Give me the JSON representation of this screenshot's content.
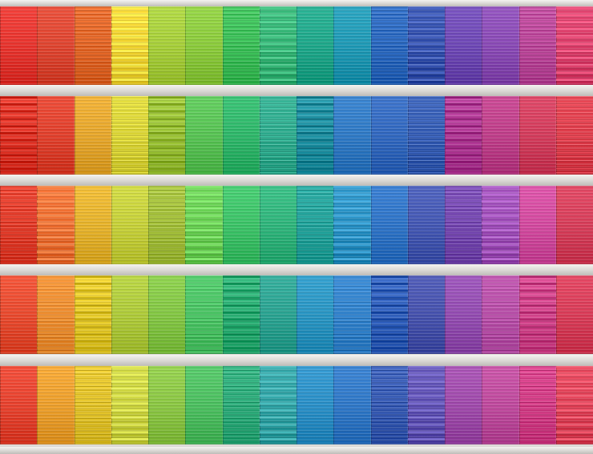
{
  "floors": [
    {
      "colors": [
        "#e8342e",
        "#e04530",
        "#e86a2a",
        "#f0d22e",
        "#a8d03a",
        "#8ccc3c",
        "#3fc45c",
        "#2eb070",
        "#1ea88a",
        "#1f9ab6",
        "#2e6cc4",
        "#2d4aa8",
        "#6e48b6",
        "#8a4ab6",
        "#c04a9e",
        "#d83a66"
      ]
    },
    {
      "colors": [
        "#e8392c",
        "#e2402c",
        "#e8a82c",
        "#d8d232",
        "#a0c83a",
        "#58c454",
        "#2eb86a",
        "#2aa88a",
        "#2196a8",
        "#2f7ac6",
        "#3168c0",
        "#3058b0",
        "#b63c9a",
        "#c03e8a",
        "#d43c5c",
        "#dc3a48"
      ]
    },
    {
      "colors": [
        "#e8402e",
        "#ec6a2c",
        "#e8b42c",
        "#c8d23a",
        "#a8c43e",
        "#64cc4e",
        "#3cc468",
        "#2fb67c",
        "#26a8a0",
        "#238cc0",
        "#2e74c8",
        "#4458b4",
        "#7a4cb6",
        "#9a48b4",
        "#d44aa0",
        "#d83e5a"
      ]
    },
    {
      "colors": [
        "#ea4a2e",
        "#ec8a2c",
        "#ecd02e",
        "#b0cc3a",
        "#84c844",
        "#46c060",
        "#2eb478",
        "#2aa492",
        "#2996c4",
        "#2d7ec8",
        "#3464c2",
        "#4652ae",
        "#944cb2",
        "#b44aa4",
        "#d84890",
        "#da3c58"
      ]
    },
    {
      "colors": [
        "#e8422e",
        "#eea02c",
        "#e8c82e",
        "#c8d03a",
        "#8cc844",
        "#4cc060",
        "#30b07e",
        "#2a9ea0",
        "#2a90c8",
        "#2f78c8",
        "#3a5eb8",
        "#5a4cb0",
        "#a04aac",
        "#c04a9e",
        "#d8408a",
        "#dc3c52"
      ]
    }
  ]
}
